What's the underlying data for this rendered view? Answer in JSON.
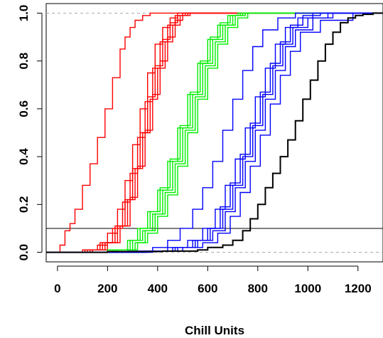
{
  "chart_data": {
    "type": "line",
    "title": "",
    "xlabel": "Chill Units",
    "ylabel": "",
    "xlim": [
      -45,
      1300
    ],
    "ylim": [
      -0.04,
      1.04
    ],
    "x_ticks": [
      "0",
      "200",
      "400",
      "600",
      "800",
      "1000",
      "1200"
    ],
    "x_tick_values": [
      0,
      200,
      400,
      600,
      800,
      1000,
      1200
    ],
    "y_ticks": [
      "0.0",
      "0.2",
      "0.4",
      "0.6",
      "0.8",
      "1.0"
    ],
    "y_tick_values": [
      0,
      0.2,
      0.4,
      0.6,
      0.8,
      1.0
    ],
    "reference_lines": [
      {
        "orientation": "horizontal",
        "y": 0,
        "style": "dashed",
        "color": "#aaaaaa"
      },
      {
        "orientation": "horizontal",
        "y": 1,
        "style": "dashed",
        "color": "#aaaaaa"
      },
      {
        "orientation": "horizontal",
        "y": 0.1,
        "style": "solid",
        "color": "#000000"
      }
    ],
    "series": [
      {
        "color": "#ff0000",
        "x": [
          0,
          10,
          30,
          50,
          70,
          100,
          130,
          160,
          190,
          220,
          250,
          270,
          290,
          310,
          340,
          370
        ],
        "y": [
          0,
          0.03,
          0.09,
          0.12,
          0.18,
          0.28,
          0.37,
          0.48,
          0.6,
          0.73,
          0.85,
          0.9,
          0.94,
          0.97,
          0.99,
          1.0
        ]
      },
      {
        "color": "#ff0000",
        "x": [
          -50,
          100,
          160,
          200,
          240,
          270,
          300,
          330,
          360,
          390,
          420,
          450,
          480
        ],
        "y": [
          0,
          0.01,
          0.03,
          0.08,
          0.18,
          0.3,
          0.45,
          0.6,
          0.75,
          0.87,
          0.94,
          0.98,
          1.0
        ]
      },
      {
        "color": "#ff0000",
        "x": [
          -50,
          110,
          170,
          220,
          260,
          290,
          320,
          350,
          380,
          410,
          440,
          470,
          500
        ],
        "y": [
          0,
          0.01,
          0.04,
          0.1,
          0.21,
          0.33,
          0.48,
          0.63,
          0.77,
          0.88,
          0.95,
          0.99,
          1.0
        ]
      },
      {
        "color": "#ff0000",
        "x": [
          -50,
          120,
          180,
          230,
          270,
          300,
          330,
          360,
          390,
          420,
          450,
          480,
          510
        ],
        "y": [
          0,
          0.01,
          0.04,
          0.11,
          0.22,
          0.35,
          0.5,
          0.65,
          0.78,
          0.89,
          0.96,
          0.99,
          1.0
        ]
      },
      {
        "color": "#ff0000",
        "x": [
          -50,
          130,
          190,
          240,
          280,
          310,
          340,
          370,
          400,
          430,
          460,
          490,
          520
        ],
        "y": [
          0,
          0.01,
          0.04,
          0.11,
          0.22,
          0.35,
          0.5,
          0.64,
          0.77,
          0.88,
          0.95,
          0.99,
          1.0
        ]
      },
      {
        "color": "#ff0000",
        "x": [
          -50,
          140,
          200,
          250,
          290,
          320,
          350,
          380,
          410,
          440,
          470,
          500,
          530
        ],
        "y": [
          0,
          0.01,
          0.04,
          0.11,
          0.23,
          0.36,
          0.51,
          0.66,
          0.8,
          0.9,
          0.97,
          0.99,
          1.0
        ]
      },
      {
        "color": "#00ee00",
        "x": [
          -50,
          200,
          280,
          320,
          360,
          400,
          440,
          480,
          520,
          560,
          600,
          640,
          680,
          720
        ],
        "y": [
          0,
          0.01,
          0.05,
          0.1,
          0.17,
          0.26,
          0.38,
          0.52,
          0.66,
          0.79,
          0.89,
          0.95,
          0.99,
          1.0
        ]
      },
      {
        "color": "#00ee00",
        "x": [
          -50,
          210,
          290,
          330,
          370,
          410,
          450,
          490,
          530,
          570,
          610,
          650,
          690,
          730
        ],
        "y": [
          0,
          0.01,
          0.05,
          0.1,
          0.17,
          0.27,
          0.39,
          0.53,
          0.67,
          0.8,
          0.9,
          0.96,
          0.99,
          1.0
        ]
      },
      {
        "color": "#00ee00",
        "x": [
          -50,
          220,
          300,
          340,
          380,
          420,
          460,
          500,
          540,
          580,
          620,
          660,
          700,
          740
        ],
        "y": [
          0,
          0.01,
          0.05,
          0.09,
          0.16,
          0.26,
          0.38,
          0.52,
          0.66,
          0.79,
          0.89,
          0.95,
          0.99,
          1.0
        ]
      },
      {
        "color": "#00ee00",
        "x": [
          -50,
          230,
          310,
          350,
          390,
          430,
          470,
          510,
          550,
          590,
          630,
          670,
          710,
          750
        ],
        "y": [
          0,
          0.01,
          0.04,
          0.09,
          0.16,
          0.25,
          0.37,
          0.51,
          0.65,
          0.78,
          0.88,
          0.95,
          0.99,
          1.0
        ]
      },
      {
        "color": "#00ee00",
        "x": [
          -50,
          240,
          320,
          360,
          400,
          440,
          480,
          520,
          560,
          600,
          640,
          680,
          720,
          760
        ],
        "y": [
          0,
          0.01,
          0.04,
          0.08,
          0.15,
          0.24,
          0.36,
          0.5,
          0.64,
          0.77,
          0.87,
          0.94,
          0.98,
          1.0
        ]
      },
      {
        "color": "#0000ff",
        "x": [
          -50,
          280,
          380,
          440,
          490,
          540,
          580,
          620,
          660,
          700,
          740,
          780,
          820,
          880,
          950
        ],
        "y": [
          0,
          0.005,
          0.02,
          0.05,
          0.1,
          0.18,
          0.27,
          0.38,
          0.51,
          0.64,
          0.76,
          0.86,
          0.93,
          0.98,
          1.0
        ]
      },
      {
        "color": "#0000ff",
        "x": [
          -50,
          320,
          440,
          520,
          580,
          630,
          670,
          710,
          750,
          790,
          830,
          870,
          910,
          960,
          1020
        ],
        "y": [
          0,
          0.005,
          0.02,
          0.05,
          0.1,
          0.18,
          0.28,
          0.39,
          0.52,
          0.65,
          0.77,
          0.87,
          0.94,
          0.98,
          1.0
        ]
      },
      {
        "color": "#0000ff",
        "x": [
          -50,
          340,
          460,
          540,
          600,
          650,
          690,
          730,
          770,
          810,
          850,
          890,
          930,
          980,
          1050
        ],
        "y": [
          0,
          0.005,
          0.02,
          0.05,
          0.1,
          0.19,
          0.29,
          0.41,
          0.54,
          0.67,
          0.79,
          0.88,
          0.95,
          0.99,
          1.0
        ]
      },
      {
        "color": "#0000ff",
        "x": [
          -50,
          350,
          470,
          550,
          610,
          660,
          700,
          740,
          780,
          820,
          860,
          900,
          940,
          1000,
          1080
        ],
        "y": [
          0,
          0.005,
          0.02,
          0.05,
          0.1,
          0.18,
          0.28,
          0.4,
          0.53,
          0.66,
          0.78,
          0.87,
          0.94,
          0.98,
          1.0
        ]
      },
      {
        "color": "#0000ff",
        "x": [
          -50,
          360,
          480,
          560,
          620,
          670,
          710,
          750,
          790,
          830,
          870,
          910,
          950,
          1020,
          1100
        ],
        "y": [
          0,
          0.005,
          0.02,
          0.05,
          0.09,
          0.17,
          0.27,
          0.38,
          0.51,
          0.64,
          0.76,
          0.86,
          0.93,
          0.98,
          1.0
        ]
      },
      {
        "color": "#0000ff",
        "x": [
          -50,
          380,
          500,
          580,
          640,
          690,
          730,
          770,
          810,
          850,
          890,
          930,
          970,
          1050,
          1180
        ],
        "y": [
          0,
          0.005,
          0.02,
          0.04,
          0.08,
          0.15,
          0.25,
          0.36,
          0.49,
          0.62,
          0.74,
          0.84,
          0.92,
          0.97,
          1.0
        ]
      },
      {
        "color": "#000000",
        "x": [
          -50,
          200,
          420,
          560,
          600,
          660,
          700,
          740,
          770,
          800,
          830,
          860,
          890,
          920,
          950,
          980,
          1010,
          1040,
          1070,
          1100,
          1130,
          1160,
          1190,
          1220,
          1260,
          1300
        ],
        "y": [
          0,
          0.003,
          0.005,
          0.01,
          0.02,
          0.03,
          0.05,
          0.09,
          0.14,
          0.2,
          0.27,
          0.33,
          0.4,
          0.47,
          0.55,
          0.64,
          0.72,
          0.8,
          0.87,
          0.92,
          0.96,
          0.98,
          0.99,
          0.995,
          1.0,
          1.0
        ]
      }
    ]
  }
}
